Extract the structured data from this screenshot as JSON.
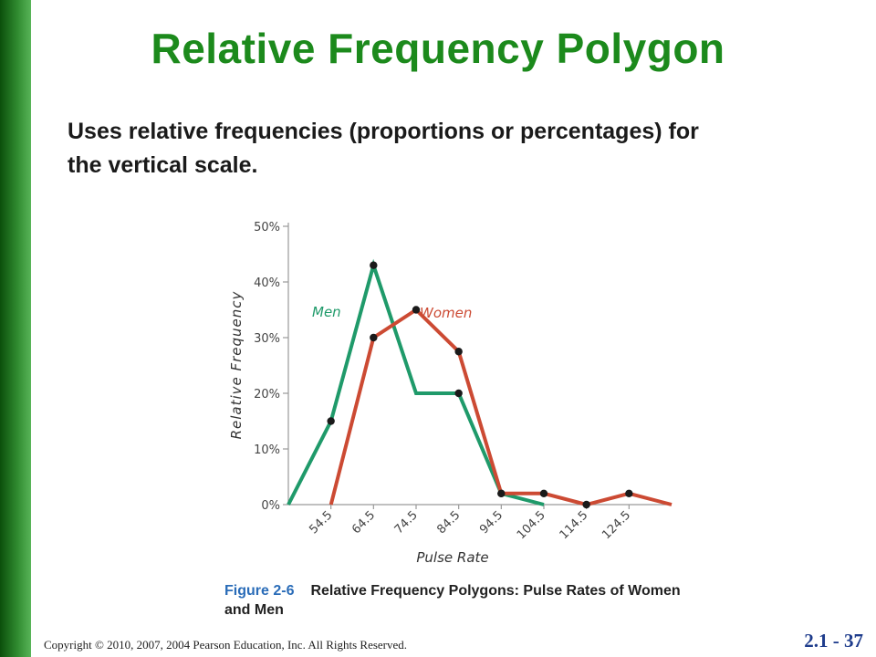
{
  "slide": {
    "title": "Relative Frequency Polygon",
    "subtitle": "Uses relative frequencies (proportions or percentages) for the vertical scale.",
    "figure_label": "Figure 2-6",
    "figure_caption": "Relative Frequency Polygons: Pulse Rates of Women and Men",
    "copyright": "Copyright © 2010, 2007, 2004 Pearson Education, Inc. All Rights Reserved.",
    "page_number": "2.1 - 37"
  },
  "colors": {
    "title": "#1c8a1c",
    "sidebar": "#2f8a2f",
    "men": "#1f9a6a",
    "women": "#cc4a33",
    "caption_label": "#2a6cb8",
    "page_number": "#1e3c8c"
  },
  "chart_data": {
    "type": "line",
    "xlabel": "Pulse Rate",
    "ylabel": "Relative Frequency",
    "ylim": [
      0,
      50
    ],
    "xlim": [
      44.5,
      134.5
    ],
    "y_ticks": [
      "0%",
      "10%",
      "20%",
      "30%",
      "40%",
      "50%"
    ],
    "y_tick_values": [
      0,
      10,
      20,
      30,
      40,
      50
    ],
    "x_ticks": [
      "54.5",
      "64.5",
      "74.5",
      "84.5",
      "94.5",
      "104.5",
      "114.5",
      "124.5"
    ],
    "x_tick_values": [
      54.5,
      64.5,
      74.5,
      84.5,
      94.5,
      104.5,
      114.5,
      124.5
    ],
    "grid": false,
    "series": [
      {
        "name": "Men",
        "color": "#1f9a6a",
        "x": [
          44.5,
          54.5,
          64.5,
          74.5,
          84.5,
          94.5,
          104.5
        ],
        "values": [
          0,
          15,
          43,
          20,
          20,
          2,
          0
        ],
        "markers": [
          false,
          true,
          true,
          false,
          true,
          true,
          false
        ]
      },
      {
        "name": "Women",
        "color": "#cc4a33",
        "x": [
          54.5,
          64.5,
          74.5,
          84.5,
          94.5,
          104.5,
          114.5,
          124.5,
          134.5
        ],
        "values": [
          0,
          30,
          35,
          27.5,
          2,
          2,
          0,
          2,
          0
        ],
        "markers": [
          false,
          true,
          true,
          true,
          true,
          true,
          true,
          true,
          false
        ]
      }
    ]
  }
}
